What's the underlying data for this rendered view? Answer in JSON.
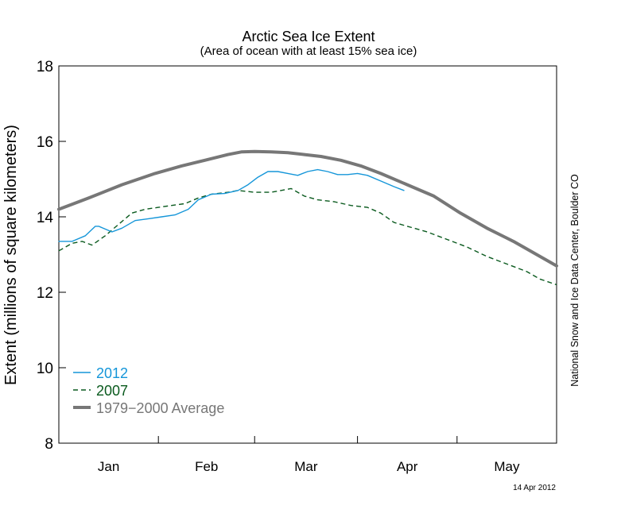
{
  "chart_data": {
    "type": "line",
    "title": "Arctic Sea Ice Extent",
    "subtitle": "(Area of ocean with at least 15% sea ice)",
    "ylabel": "Extent (millions of square kilometers)",
    "xlabel": "",
    "ylim": [
      8,
      18
    ],
    "yticks": [
      8,
      10,
      12,
      14,
      16,
      18
    ],
    "xlim": [
      1,
      151
    ],
    "month_ticks": [
      31,
      60,
      91,
      121
    ],
    "month_labels": [
      {
        "label": "Jan",
        "day": 16
      },
      {
        "label": "Feb",
        "day": 45.5
      },
      {
        "label": "Mar",
        "day": 75.5
      },
      {
        "label": "Apr",
        "day": 106
      },
      {
        "label": "May",
        "day": 136
      }
    ],
    "grid": false,
    "legend_position": "bottom-left",
    "credit": "National Snow and Ice Data Center, Boulder CO",
    "date_label": "14 Apr 2012",
    "series": [
      {
        "name": "2012",
        "color": "#1596d9",
        "style": "solid",
        "x": [
          1,
          5,
          9,
          12,
          13,
          17,
          20,
          24,
          28,
          32,
          36,
          40,
          43,
          47,
          51,
          55,
          58,
          61,
          64,
          67,
          70,
          73,
          76,
          79,
          82,
          85,
          88,
          91,
          94,
          98,
          102,
          105
        ],
        "y": [
          13.35,
          13.35,
          13.5,
          13.75,
          13.75,
          13.6,
          13.7,
          13.9,
          13.95,
          14.0,
          14.05,
          14.2,
          14.45,
          14.6,
          14.62,
          14.7,
          14.85,
          15.05,
          15.2,
          15.2,
          15.15,
          15.1,
          15.2,
          15.25,
          15.2,
          15.12,
          15.12,
          15.15,
          15.1,
          14.95,
          14.8,
          14.7
        ]
      },
      {
        "name": "2007",
        "color": "#0a5a1e",
        "style": "dashed",
        "x": [
          1,
          5,
          8,
          11,
          15,
          19,
          23,
          27,
          31,
          35,
          39,
          43,
          47,
          52,
          55,
          60,
          65,
          68,
          71,
          75,
          79,
          84,
          89,
          94,
          98,
          102,
          106,
          112,
          118,
          124,
          130,
          136,
          142,
          146,
          151
        ],
        "y": [
          13.1,
          13.3,
          13.35,
          13.25,
          13.5,
          13.8,
          14.1,
          14.2,
          14.25,
          14.3,
          14.35,
          14.5,
          14.6,
          14.65,
          14.7,
          14.65,
          14.65,
          14.7,
          14.75,
          14.55,
          14.45,
          14.4,
          14.3,
          14.25,
          14.1,
          13.85,
          13.75,
          13.6,
          13.4,
          13.2,
          12.95,
          12.75,
          12.55,
          12.35,
          12.2
        ]
      },
      {
        "name": "1979−2000 Average",
        "color": "#777777",
        "style": "solid-thick",
        "x": [
          1,
          10,
          20,
          30,
          38,
          45,
          52,
          56,
          60,
          65,
          70,
          75,
          80,
          86,
          92,
          98,
          106,
          114,
          122,
          130,
          138,
          146,
          151
        ],
        "y": [
          14.2,
          14.5,
          14.85,
          15.15,
          15.35,
          15.5,
          15.65,
          15.72,
          15.73,
          15.72,
          15.7,
          15.65,
          15.6,
          15.5,
          15.35,
          15.15,
          14.85,
          14.55,
          14.1,
          13.7,
          13.35,
          12.95,
          12.7
        ]
      }
    ]
  }
}
